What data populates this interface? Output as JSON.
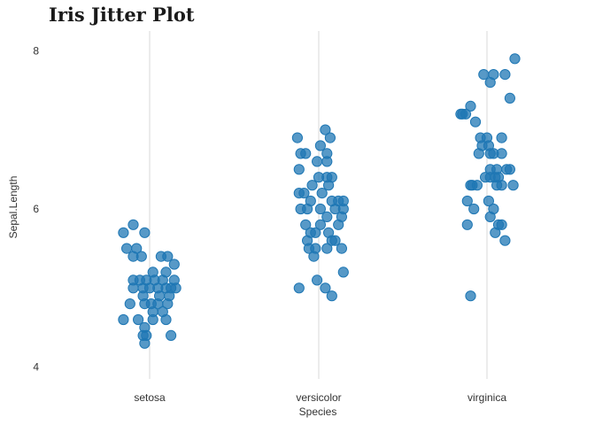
{
  "chart_data": {
    "type": "scatter",
    "title": "Iris Jitter Plot",
    "xlabel": "Species",
    "ylabel": "Sepal.Length",
    "categories": [
      "setosa",
      "versicolor",
      "virginica"
    ],
    "ylim": [
      3.85,
      8.25
    ],
    "yticks": [
      4,
      6,
      8
    ],
    "grid": "vertical",
    "point_color": "#1f77b4",
    "gridline_color": "#d9d9d9",
    "series": [
      {
        "category": "setosa",
        "points": [
          [
            -0.16,
            5.7
          ],
          [
            -0.1,
            5.8
          ],
          [
            -0.03,
            5.7
          ],
          [
            -0.14,
            5.5
          ],
          [
            -0.08,
            5.5
          ],
          [
            -0.05,
            5.4
          ],
          [
            -0.1,
            5.4
          ],
          [
            0.07,
            5.4
          ],
          [
            0.11,
            5.4
          ],
          [
            0.15,
            5.3
          ],
          [
            0.02,
            5.2
          ],
          [
            0.1,
            5.2
          ],
          [
            -0.1,
            5.1
          ],
          [
            -0.06,
            5.1
          ],
          [
            -0.02,
            5.1
          ],
          [
            0.03,
            5.1
          ],
          [
            0.08,
            5.1
          ],
          [
            0.15,
            5.1
          ],
          [
            -0.1,
            5.0
          ],
          [
            -0.04,
            5.0
          ],
          [
            0.0,
            5.0
          ],
          [
            0.05,
            5.0
          ],
          [
            0.1,
            5.0
          ],
          [
            0.13,
            5.0
          ],
          [
            0.16,
            5.0
          ],
          [
            -0.04,
            4.9
          ],
          [
            0.06,
            4.9
          ],
          [
            0.12,
            4.9
          ],
          [
            -0.12,
            4.8
          ],
          [
            -0.03,
            4.8
          ],
          [
            0.01,
            4.8
          ],
          [
            0.05,
            4.8
          ],
          [
            0.11,
            4.8
          ],
          [
            0.02,
            4.7
          ],
          [
            0.08,
            4.7
          ],
          [
            -0.16,
            4.6
          ],
          [
            -0.07,
            4.6
          ],
          [
            0.02,
            4.6
          ],
          [
            0.1,
            4.6
          ],
          [
            -0.03,
            4.5
          ],
          [
            -0.02,
            4.4
          ],
          [
            -0.04,
            4.4
          ],
          [
            0.13,
            4.4
          ],
          [
            -0.03,
            4.3
          ]
        ]
      },
      {
        "category": "versicolor",
        "points": [
          [
            0.04,
            7.0
          ],
          [
            -0.13,
            6.9
          ],
          [
            0.07,
            6.9
          ],
          [
            0.01,
            6.8
          ],
          [
            -0.11,
            6.7
          ],
          [
            -0.08,
            6.7
          ],
          [
            0.05,
            6.7
          ],
          [
            -0.01,
            6.6
          ],
          [
            0.05,
            6.6
          ],
          [
            -0.12,
            6.5
          ],
          [
            0.0,
            6.4
          ],
          [
            0.05,
            6.4
          ],
          [
            0.08,
            6.4
          ],
          [
            -0.04,
            6.3
          ],
          [
            0.06,
            6.3
          ],
          [
            -0.12,
            6.2
          ],
          [
            -0.09,
            6.2
          ],
          [
            0.02,
            6.2
          ],
          [
            0.12,
            6.1
          ],
          [
            0.15,
            6.1
          ],
          [
            0.08,
            6.1
          ],
          [
            -0.05,
            6.1
          ],
          [
            -0.11,
            6.0
          ],
          [
            -0.07,
            6.0
          ],
          [
            0.01,
            6.0
          ],
          [
            0.1,
            6.0
          ],
          [
            0.15,
            6.0
          ],
          [
            0.05,
            5.9
          ],
          [
            0.14,
            5.9
          ],
          [
            -0.08,
            5.8
          ],
          [
            0.01,
            5.8
          ],
          [
            0.12,
            5.8
          ],
          [
            -0.05,
            5.7
          ],
          [
            -0.02,
            5.7
          ],
          [
            0.06,
            5.7
          ],
          [
            -0.07,
            5.6
          ],
          [
            0.08,
            5.6
          ],
          [
            0.1,
            5.6
          ],
          [
            -0.06,
            5.5
          ],
          [
            -0.02,
            5.5
          ],
          [
            0.05,
            5.5
          ],
          [
            0.14,
            5.5
          ],
          [
            -0.03,
            5.4
          ],
          [
            0.15,
            5.2
          ],
          [
            -0.01,
            5.1
          ],
          [
            -0.12,
            5.0
          ],
          [
            0.04,
            5.0
          ],
          [
            0.08,
            4.9
          ]
        ]
      },
      {
        "category": "virginica",
        "points": [
          [
            0.17,
            7.9
          ],
          [
            -0.02,
            7.7
          ],
          [
            0.04,
            7.7
          ],
          [
            0.11,
            7.7
          ],
          [
            0.02,
            7.6
          ],
          [
            0.14,
            7.4
          ],
          [
            -0.1,
            7.3
          ],
          [
            -0.16,
            7.2
          ],
          [
            -0.15,
            7.2
          ],
          [
            -0.13,
            7.2
          ],
          [
            -0.07,
            7.1
          ],
          [
            -0.04,
            6.9
          ],
          [
            0.0,
            6.9
          ],
          [
            0.09,
            6.9
          ],
          [
            -0.03,
            6.8
          ],
          [
            0.01,
            6.8
          ],
          [
            -0.05,
            6.7
          ],
          [
            0.02,
            6.7
          ],
          [
            0.04,
            6.7
          ],
          [
            0.09,
            6.7
          ],
          [
            0.02,
            6.5
          ],
          [
            0.06,
            6.5
          ],
          [
            0.12,
            6.5
          ],
          [
            0.14,
            6.5
          ],
          [
            -0.01,
            6.4
          ],
          [
            0.02,
            6.4
          ],
          [
            0.05,
            6.4
          ],
          [
            0.07,
            6.4
          ],
          [
            -0.1,
            6.3
          ],
          [
            -0.09,
            6.3
          ],
          [
            -0.06,
            6.3
          ],
          [
            0.06,
            6.3
          ],
          [
            0.09,
            6.3
          ],
          [
            0.16,
            6.3
          ],
          [
            -0.12,
            6.1
          ],
          [
            0.01,
            6.1
          ],
          [
            -0.08,
            6.0
          ],
          [
            0.04,
            6.0
          ],
          [
            0.02,
            5.9
          ],
          [
            -0.12,
            5.8
          ],
          [
            0.07,
            5.8
          ],
          [
            0.09,
            5.8
          ],
          [
            0.05,
            5.7
          ],
          [
            0.11,
            5.6
          ],
          [
            -0.1,
            4.9
          ]
        ]
      }
    ]
  }
}
